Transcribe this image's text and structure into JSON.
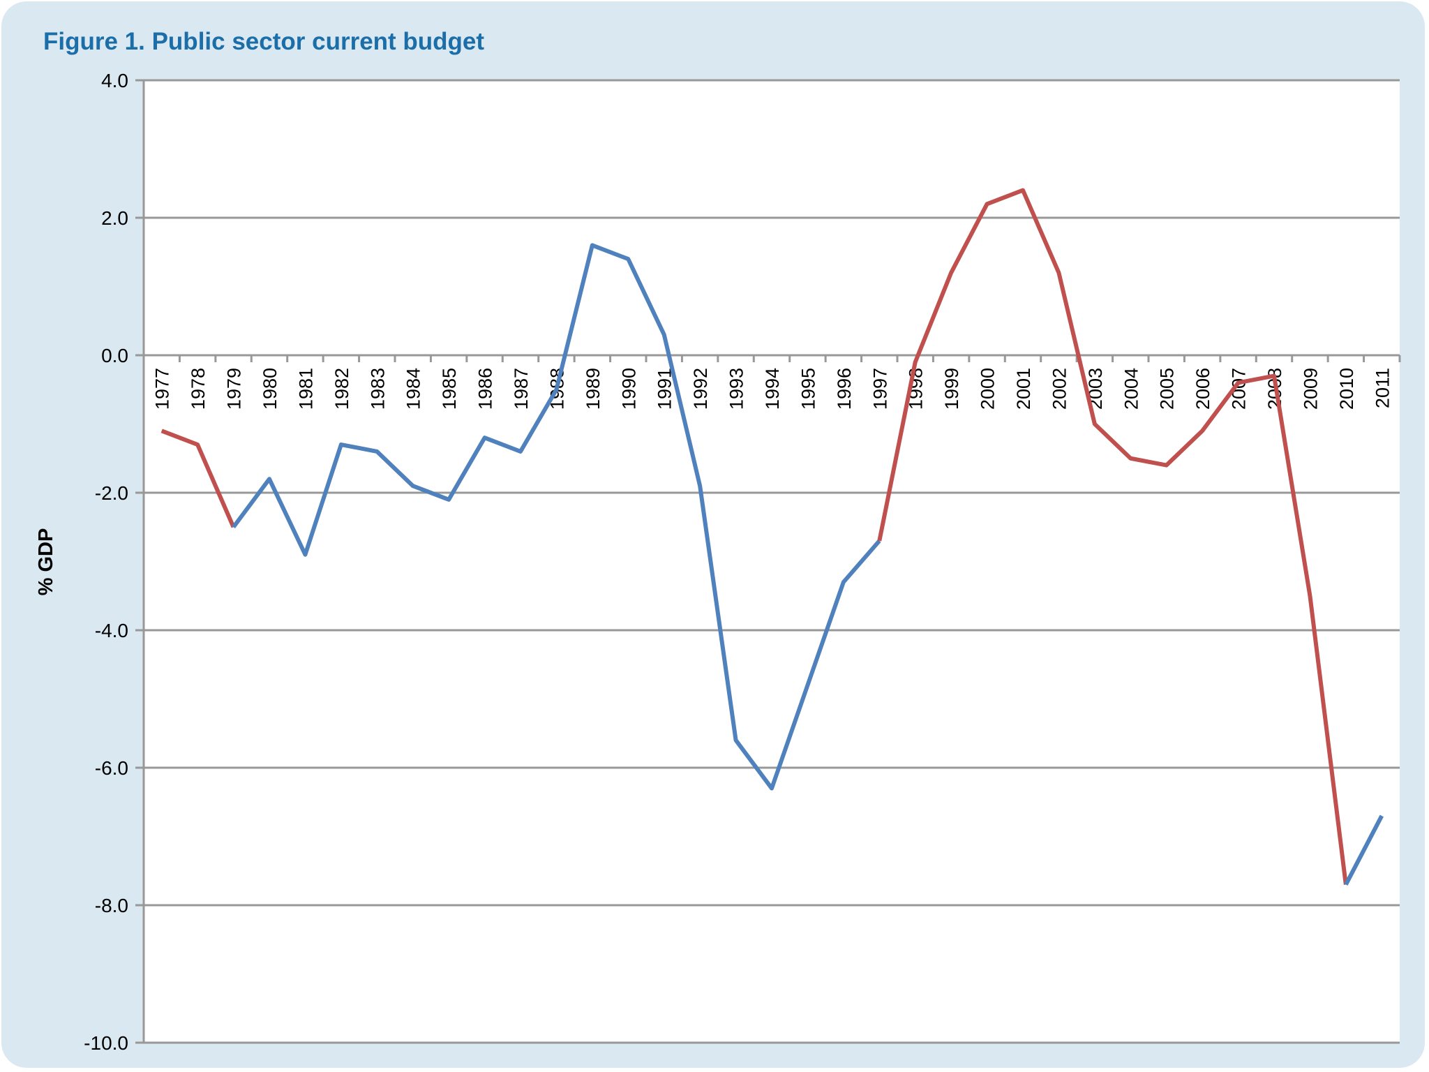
{
  "chart_data": {
    "type": "line",
    "title": "Figure 1. Public sector current budget",
    "ylabel": "% GDP",
    "xlabel": "",
    "ylim": [
      -10,
      4
    ],
    "yticks": [
      "4.0",
      "2.0",
      "0.0",
      "-2.0",
      "-4.0",
      "-6.0",
      "-8.0",
      "-10.0"
    ],
    "ytick_values": [
      4,
      2,
      0,
      -2,
      -4,
      -6,
      -8,
      -10
    ],
    "grid": true,
    "categories": [
      "1977",
      "1978",
      "1979",
      "1980",
      "1981",
      "1982",
      "1983",
      "1984",
      "1985",
      "1986",
      "1987",
      "1988",
      "1989",
      "1990",
      "1991",
      "1992",
      "1993",
      "1994",
      "1995",
      "1996",
      "1997",
      "1998",
      "1999",
      "2000",
      "2001",
      "2002",
      "2003",
      "2004",
      "2005",
      "2006",
      "2007",
      "2008",
      "2009",
      "2010",
      "2011"
    ],
    "values": [
      -1.1,
      -1.3,
      -2.5,
      -1.8,
      -2.9,
      -1.3,
      -1.4,
      -1.9,
      -2.1,
      -1.2,
      -1.4,
      -0.5,
      1.6,
      1.4,
      0.3,
      -1.9,
      -5.6,
      -6.3,
      -4.8,
      -3.3,
      -2.7,
      -0.1,
      1.2,
      2.2,
      2.4,
      1.2,
      -1.0,
      -1.5,
      -1.6,
      -1.1,
      -0.4,
      -0.3,
      -3.5,
      -7.7,
      -6.7
    ],
    "colored_ranges": [
      {
        "from": "1977",
        "to": "1979",
        "color": "#C0504D"
      },
      {
        "from": "1979",
        "to": "1997",
        "color": "#4F81BD"
      },
      {
        "from": "1997",
        "to": "2010",
        "color": "#C0504D"
      },
      {
        "from": "2010",
        "to": "2011",
        "color": "#4F81BD"
      }
    ],
    "colors": {
      "title": "#1B6EA8",
      "panel": "#DAE8F1",
      "grid": "#989898"
    }
  }
}
